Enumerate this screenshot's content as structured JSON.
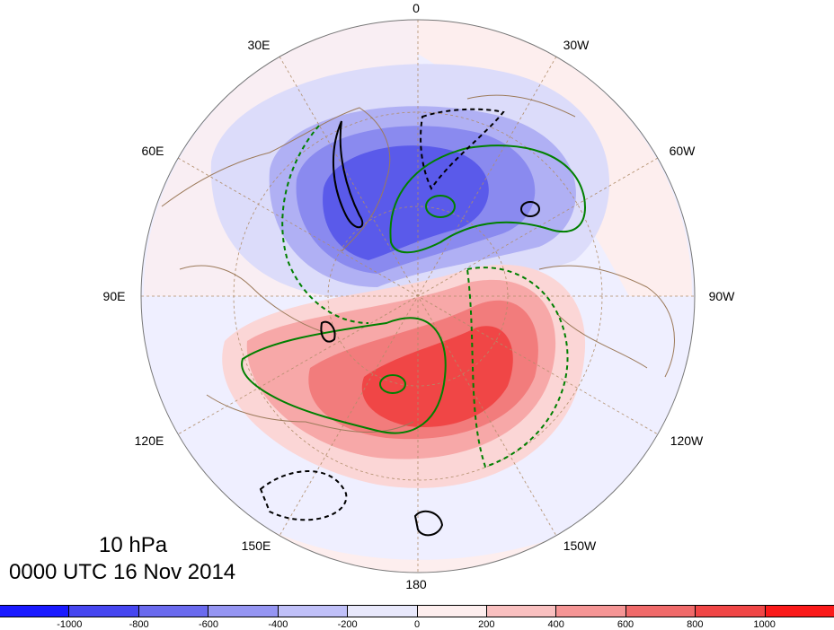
{
  "map": {
    "level_label": "10 hPa",
    "time_label": "0000 UTC 16 Nov 2014",
    "projection": "north-polar-stereographic",
    "longitude_labels": [
      "0",
      "30W",
      "60W",
      "90W",
      "120W",
      "150W",
      "180",
      "150E",
      "120E",
      "90E",
      "60E",
      "30E"
    ],
    "colorbar": {
      "colors": [
        "#1a1aff",
        "#4646f0",
        "#6a6aee",
        "#9595f2",
        "#c0c0f8",
        "#e8e8fb",
        "#fdeeee",
        "#f9c0c0",
        "#f59595",
        "#f06a6a",
        "#f04646",
        "#fa1a1a"
      ],
      "tick_labels": [
        "-1000",
        "-800",
        "-600",
        "-400",
        "-200",
        "0",
        "200",
        "400",
        "600",
        "800",
        "1000"
      ]
    },
    "anomaly_colors": {
      "negative_strong": "#5a5aea",
      "positive_strong": "#f04646",
      "positive_contour": "#008000",
      "negative_contour": "#000000"
    }
  }
}
